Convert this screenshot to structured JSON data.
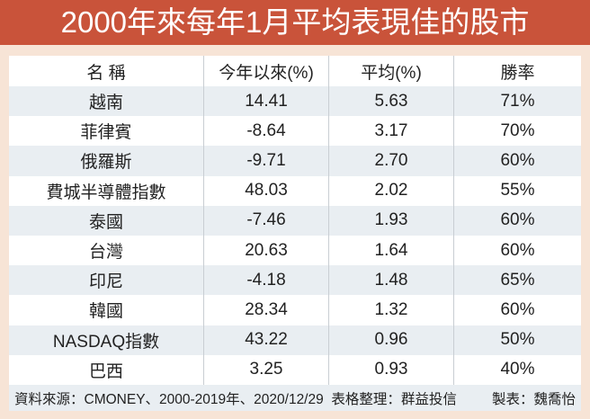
{
  "title": "2000年來每年1月平均表現佳的股市",
  "chart_data": {
    "type": "table",
    "title": "2000年來每年1月平均表現佳的股市",
    "columns": [
      "名 稱",
      "今年以來(%)",
      "平均(%)",
      "勝率"
    ],
    "rows": [
      [
        "越南",
        "14.41",
        "5.63",
        "71%"
      ],
      [
        "菲律賓",
        "-8.64",
        "3.17",
        "70%"
      ],
      [
        "俄羅斯",
        "-9.71",
        "2.70",
        "60%"
      ],
      [
        "費城半導體指數",
        "48.03",
        "2.02",
        "55%"
      ],
      [
        "泰國",
        "-7.46",
        "1.93",
        "60%"
      ],
      [
        "台灣",
        "20.63",
        "1.64",
        "60%"
      ],
      [
        "印尼",
        "-4.18",
        "1.48",
        "65%"
      ],
      [
        "韓國",
        "28.34",
        "1.32",
        "60%"
      ],
      [
        "NASDAQ指數",
        "43.22",
        "0.96",
        "50%"
      ],
      [
        "巴西",
        "3.25",
        "0.93",
        "40%"
      ]
    ]
  },
  "footer": {
    "source": "資料來源：CMONEY、2000-2019年、2020/12/29  表格整理：群益投信",
    "maker": "製表：魏喬怡"
  },
  "colors": {
    "title_bg": "#c9533a",
    "background": "#f7e4d6",
    "stripe": "#e9eef2"
  }
}
